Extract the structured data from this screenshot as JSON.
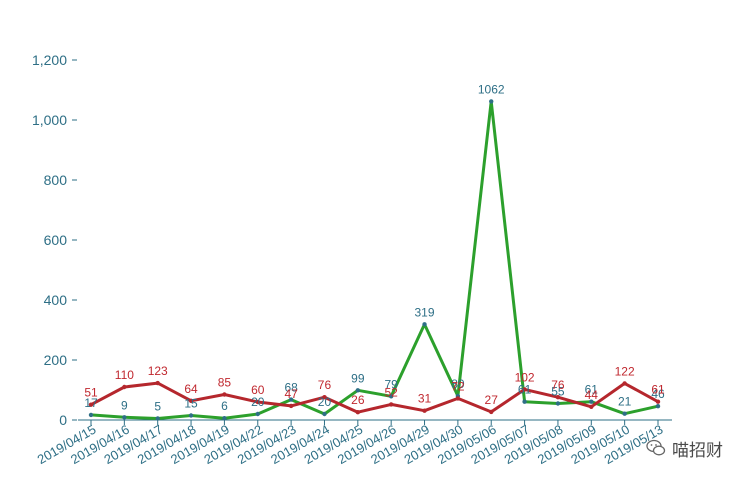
{
  "watermark": {
    "text": "喵招财",
    "icon": "wechat-icon"
  },
  "chart_data": {
    "type": "line",
    "categories": [
      "2019/04/15",
      "2019/04/16",
      "2019/04/17",
      "2019/04/18",
      "2019/04/19",
      "2019/04/22",
      "2019/04/23",
      "2019/04/24",
      "2019/04/25",
      "2019/04/26",
      "2019/04/29",
      "2019/04/30",
      "2019/05/06",
      "2019/05/07",
      "2019/05/08",
      "2019/05/09",
      "2019/05/10",
      "2019/05/13"
    ],
    "ylim": [
      0,
      1200
    ],
    "yticks": [
      0,
      200,
      400,
      600,
      800,
      1000,
      1200
    ],
    "ytick_labels": [
      "0",
      "200",
      "400",
      "600",
      "800",
      "1,000",
      "1,200"
    ],
    "grid": false,
    "legend": "none",
    "series": [
      {
        "color": "#2ca02c",
        "label_color": "#2e6f86",
        "values": [
          17,
          9,
          5,
          15,
          6,
          20,
          68,
          20,
          99,
          79,
          319,
          80,
          1062,
          61,
          55,
          61,
          21,
          46
        ]
      },
      {
        "color": "#b5272d",
        "label_color": "#c0282f",
        "values": [
          51,
          110,
          123,
          64,
          85,
          60,
          47,
          76,
          26,
          52,
          31,
          72,
          27,
          102,
          76,
          44,
          122,
          61
        ]
      }
    ]
  }
}
